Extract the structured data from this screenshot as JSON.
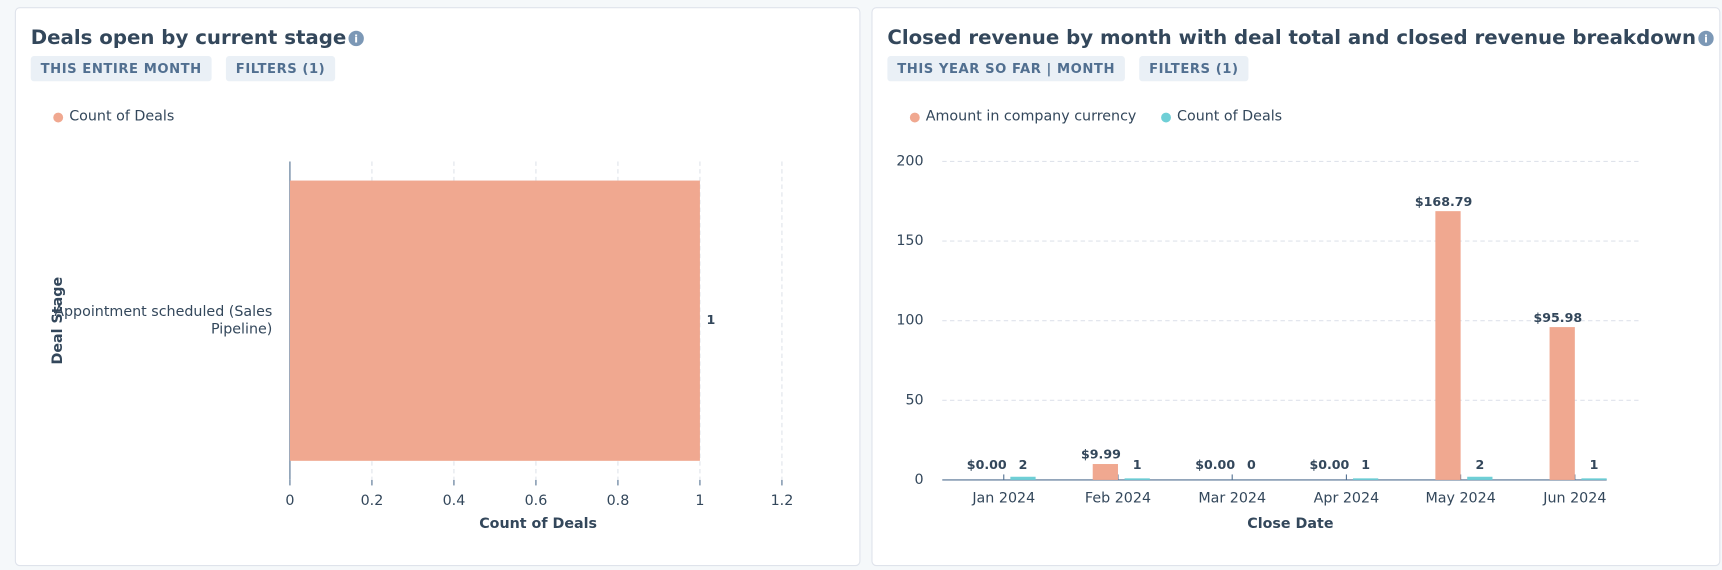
{
  "chart_data": [
    {
      "type": "hbar",
      "title": "Deals open by current stage",
      "filters": [
        "THIS ENTIRE MONTH",
        "FILTERS (1)"
      ],
      "series": [
        {
          "name": "Count of Deals",
          "color": "#f0a890",
          "values": [
            1
          ]
        }
      ],
      "categories": [
        "Appointment scheduled (Sales Pipeline)"
      ],
      "ylabel": "Deal Stage",
      "xlabel": "Count of Deals",
      "xlim": [
        0,
        1.2
      ],
      "xticks": [
        0,
        0.2,
        0.4,
        0.6,
        0.8,
        1,
        1.2
      ],
      "grid": true
    },
    {
      "type": "bar",
      "title": "Closed revenue by month with deal total and closed revenue breakdown",
      "filters": [
        "THIS YEAR SO FAR | MONTH",
        "FILTERS (1)"
      ],
      "categories": [
        "Jan 2024",
        "Feb 2024",
        "Mar 2024",
        "Apr 2024",
        "May 2024",
        "Jun 2024"
      ],
      "series": [
        {
          "name": "Amount in company currency",
          "color": "#f0a890",
          "values": [
            0,
            9.99,
            0,
            0,
            168.79,
            95.98
          ],
          "value_labels": [
            "$0.00",
            "$9.99",
            "$0.00",
            "$0.00",
            "$168.79",
            "$95.98"
          ]
        },
        {
          "name": "Count of Deals",
          "color": "#6fcfd6",
          "values": [
            2,
            1,
            0,
            1,
            2,
            1
          ]
        }
      ],
      "xlabel": "Close Date",
      "ylim": [
        0,
        200
      ],
      "yticks": [
        0,
        50,
        100,
        150,
        200
      ],
      "grid": true
    }
  ]
}
